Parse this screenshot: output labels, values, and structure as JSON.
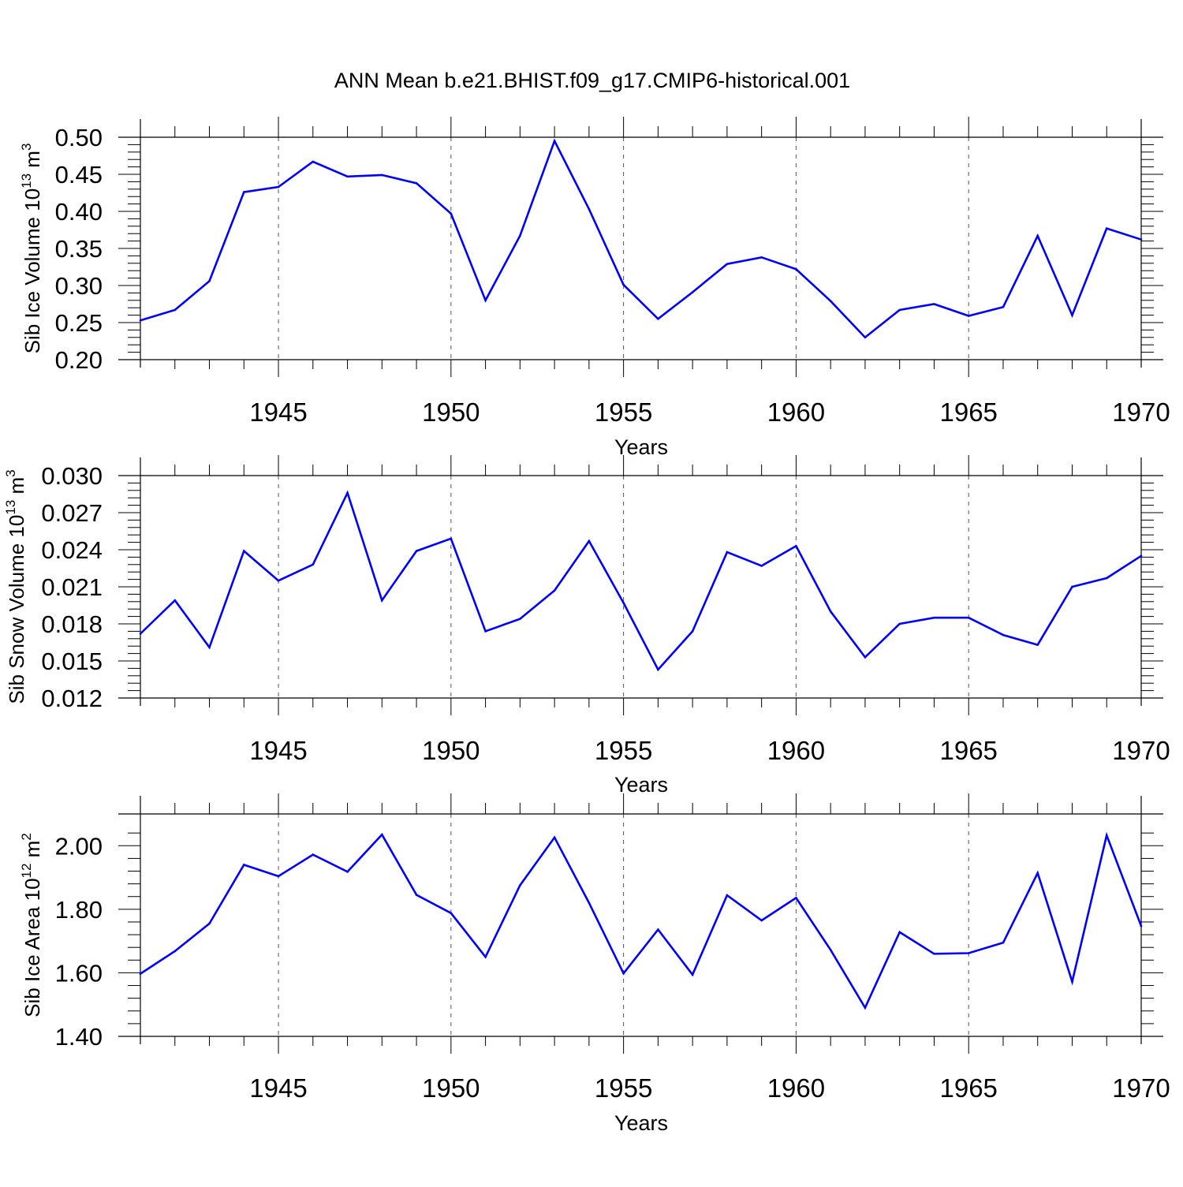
{
  "title": "ANN Mean b.e21.BHIST.f09_g17.CMIP6-historical.001",
  "x_axis": {
    "label": "Years",
    "tick_labels": [
      "1945",
      "1950",
      "1955",
      "1960",
      "1965",
      "1970"
    ],
    "range": [
      1941,
      1970
    ]
  },
  "panels": [
    {
      "ylabel": {
        "text": "Sib Ice Volume 10",
        "exp": "13",
        "unit": " m",
        "unit_exp": "3"
      },
      "ytick_labels": [
        "0.20",
        "0.25",
        "0.30",
        "0.35",
        "0.40",
        "0.45",
        "0.50"
      ]
    },
    {
      "ylabel": {
        "text": "Sib Snow Volume 10",
        "exp": "13",
        "unit": " m",
        "unit_exp": "3"
      },
      "ytick_labels": [
        "0.012",
        "0.015",
        "0.018",
        "0.021",
        "0.024",
        "0.027",
        "0.030"
      ]
    },
    {
      "ylabel": {
        "text": "Sib Ice Area 10",
        "exp": "12",
        "unit": " m",
        "unit_exp": "2"
      },
      "ytick_labels": [
        "1.40",
        "1.60",
        "1.80",
        "2.00"
      ]
    }
  ],
  "colors": {
    "line": "#0000ff",
    "axes": "#000000",
    "grid": "#555555"
  },
  "chart_data": [
    {
      "type": "line",
      "x": [
        1941,
        1942,
        1943,
        1944,
        1945,
        1946,
        1947,
        1948,
        1949,
        1950,
        1951,
        1952,
        1953,
        1954,
        1955,
        1956,
        1957,
        1958,
        1959,
        1960,
        1961,
        1962,
        1963,
        1964,
        1965,
        1966,
        1967,
        1968,
        1969,
        1970
      ],
      "y": [
        0.253,
        0.267,
        0.306,
        0.426,
        0.433,
        0.467,
        0.447,
        0.449,
        0.438,
        0.397,
        0.28,
        0.367,
        0.495,
        0.403,
        0.301,
        0.255,
        0.291,
        0.329,
        0.338,
        0.322,
        0.279,
        0.23,
        0.267,
        0.275,
        0.259,
        0.271,
        0.367,
        0.26,
        0.377,
        0.362
      ],
      "ylim": [
        0.2,
        0.5
      ],
      "xlim": [
        1941,
        1970
      ],
      "grid": "vertical dashed at tick years"
    },
    {
      "type": "line",
      "x": [
        1941,
        1942,
        1943,
        1944,
        1945,
        1946,
        1947,
        1948,
        1949,
        1950,
        1951,
        1952,
        1953,
        1954,
        1955,
        1956,
        1957,
        1958,
        1959,
        1960,
        1961,
        1962,
        1963,
        1964,
        1965,
        1966,
        1967,
        1968,
        1969,
        1970
      ],
      "y": [
        0.0172,
        0.0199,
        0.0161,
        0.0239,
        0.0215,
        0.0228,
        0.0286,
        0.0199,
        0.0239,
        0.0249,
        0.0174,
        0.0184,
        0.0207,
        0.0247,
        0.0197,
        0.0143,
        0.0174,
        0.0238,
        0.0227,
        0.0243,
        0.019,
        0.0153,
        0.018,
        0.0185,
        0.0185,
        0.0171,
        0.0163,
        0.021,
        0.0217,
        0.0235
      ],
      "ylim": [
        0.012,
        0.03
      ],
      "xlim": [
        1941,
        1970
      ],
      "grid": "vertical dashed at tick years"
    },
    {
      "type": "line",
      "x": [
        1941,
        1942,
        1943,
        1944,
        1945,
        1946,
        1947,
        1948,
        1949,
        1950,
        1951,
        1952,
        1953,
        1954,
        1955,
        1956,
        1957,
        1958,
        1959,
        1960,
        1961,
        1962,
        1963,
        1964,
        1965,
        1966,
        1967,
        1968,
        1969,
        1970
      ],
      "y": [
        1.597,
        1.668,
        1.755,
        1.94,
        1.904,
        1.972,
        1.918,
        2.035,
        1.845,
        1.788,
        1.65,
        1.875,
        2.026,
        1.82,
        1.598,
        1.736,
        1.594,
        1.844,
        1.765,
        1.836,
        1.672,
        1.49,
        1.728,
        1.66,
        1.662,
        1.695,
        1.914,
        1.572,
        2.033,
        1.747
      ],
      "ylim": [
        1.4,
        2.1
      ],
      "xlim": [
        1941,
        1970
      ],
      "grid": "vertical dashed at tick years"
    }
  ]
}
